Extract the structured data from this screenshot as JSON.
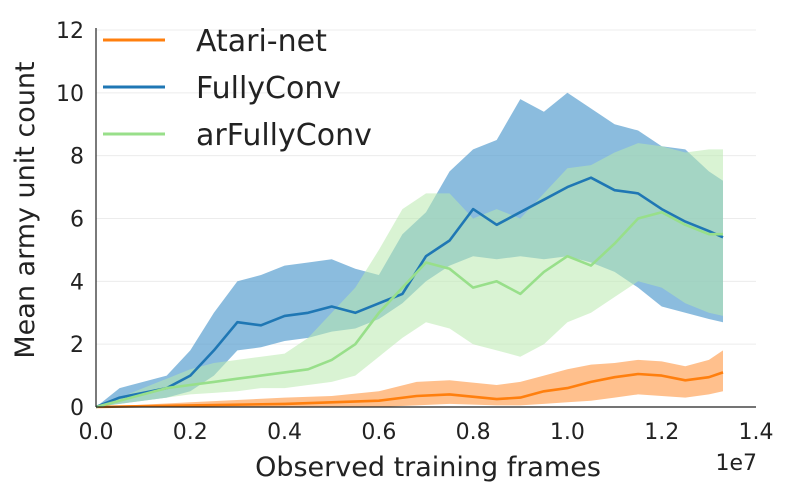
{
  "chart_data": {
    "type": "line",
    "title": "",
    "xlabel": "Observed training frames",
    "ylabel": "Mean army unit count",
    "x_offset_label": "1e7",
    "xlim": [
      0.0,
      1.4
    ],
    "ylim": [
      0,
      12
    ],
    "xticks": [
      "0.0",
      "0.2",
      "0.4",
      "0.6",
      "0.8",
      "1.0",
      "1.2",
      "1.4"
    ],
    "yticks": [
      "0",
      "2",
      "4",
      "6",
      "8",
      "10",
      "12"
    ],
    "grid": "horizontal",
    "legend_position": "top-left",
    "series": [
      {
        "name": "Atari-net",
        "color": "#ff7f0e",
        "band_color": "#ffa55c",
        "x": [
          0.0,
          0.2,
          0.4,
          0.5,
          0.6,
          0.68,
          0.75,
          0.85,
          0.9,
          0.95,
          1.0,
          1.05,
          1.1,
          1.15,
          1.2,
          1.25,
          1.3,
          1.33
        ],
        "y": [
          0.0,
          0.05,
          0.1,
          0.15,
          0.2,
          0.35,
          0.4,
          0.25,
          0.3,
          0.5,
          0.6,
          0.8,
          0.95,
          1.05,
          1.0,
          0.85,
          0.95,
          1.1
        ],
        "lower": [
          0.0,
          0.0,
          0.0,
          0.0,
          0.0,
          0.05,
          0.1,
          0.05,
          0.05,
          0.1,
          0.15,
          0.2,
          0.3,
          0.4,
          0.35,
          0.3,
          0.4,
          0.5
        ],
        "upper": [
          0.0,
          0.15,
          0.3,
          0.35,
          0.5,
          0.8,
          0.85,
          0.7,
          0.8,
          1.0,
          1.2,
          1.35,
          1.4,
          1.5,
          1.45,
          1.3,
          1.5,
          1.8
        ]
      },
      {
        "name": "FullyConv",
        "color": "#1f77b4",
        "band_color": "#5a9fd0",
        "x": [
          0.0,
          0.05,
          0.1,
          0.15,
          0.2,
          0.25,
          0.3,
          0.35,
          0.4,
          0.45,
          0.5,
          0.55,
          0.6,
          0.65,
          0.7,
          0.75,
          0.8,
          0.85,
          0.9,
          0.95,
          1.0,
          1.05,
          1.1,
          1.15,
          1.2,
          1.25,
          1.3,
          1.33
        ],
        "y": [
          0.0,
          0.3,
          0.45,
          0.6,
          1.0,
          1.8,
          2.7,
          2.6,
          2.9,
          3.0,
          3.2,
          3.0,
          3.3,
          3.6,
          4.8,
          5.3,
          6.3,
          5.8,
          6.2,
          6.6,
          7.0,
          7.3,
          6.9,
          6.8,
          6.3,
          5.9,
          5.6,
          5.4
        ],
        "lower": [
          0.0,
          0.1,
          0.2,
          0.3,
          0.5,
          1.0,
          1.8,
          1.9,
          2.1,
          2.2,
          2.4,
          2.5,
          2.8,
          3.3,
          4.0,
          4.5,
          4.8,
          4.7,
          4.8,
          4.7,
          4.8,
          4.6,
          4.3,
          3.8,
          3.2,
          3.0,
          2.8,
          2.7
        ],
        "upper": [
          0.0,
          0.6,
          0.8,
          1.0,
          1.8,
          3.0,
          4.0,
          4.2,
          4.5,
          4.6,
          4.7,
          4.4,
          4.2,
          5.5,
          6.2,
          7.5,
          8.2,
          8.5,
          9.8,
          9.4,
          10.0,
          9.5,
          9.0,
          8.8,
          8.3,
          8.2,
          7.5,
          7.2
        ]
      },
      {
        "name": "arFullyConv",
        "color": "#98df8a",
        "band_color": "#b9e9ae",
        "x": [
          0.0,
          0.05,
          0.1,
          0.15,
          0.2,
          0.25,
          0.3,
          0.35,
          0.4,
          0.45,
          0.5,
          0.55,
          0.6,
          0.65,
          0.7,
          0.75,
          0.8,
          0.85,
          0.9,
          0.95,
          1.0,
          1.05,
          1.1,
          1.15,
          1.2,
          1.25,
          1.3,
          1.33
        ],
        "y": [
          0.0,
          0.2,
          0.4,
          0.6,
          0.7,
          0.8,
          0.9,
          1.0,
          1.1,
          1.2,
          1.5,
          2.0,
          3.0,
          3.8,
          4.6,
          4.4,
          3.8,
          4.0,
          3.6,
          4.3,
          4.8,
          4.5,
          5.2,
          6.0,
          6.2,
          5.8,
          5.5,
          5.5
        ],
        "lower": [
          0.0,
          0.1,
          0.2,
          0.3,
          0.4,
          0.45,
          0.5,
          0.6,
          0.6,
          0.7,
          0.8,
          1.0,
          1.6,
          2.2,
          2.7,
          2.5,
          2.0,
          1.8,
          1.6,
          2.0,
          2.7,
          3.0,
          3.5,
          4.0,
          3.8,
          3.3,
          3.0,
          2.9
        ],
        "upper": [
          0.0,
          0.3,
          0.6,
          0.9,
          1.2,
          1.4,
          1.5,
          1.6,
          1.7,
          2.2,
          3.0,
          3.8,
          5.0,
          6.3,
          6.8,
          6.8,
          6.0,
          6.3,
          6.0,
          6.8,
          7.6,
          7.7,
          8.1,
          8.4,
          8.3,
          8.1,
          8.2,
          8.2
        ]
      }
    ]
  }
}
